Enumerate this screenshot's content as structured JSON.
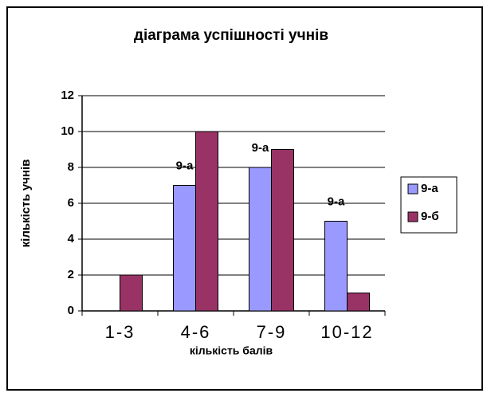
{
  "chart_data": {
    "type": "bar",
    "title": "діаграма успішності учнів",
    "x_label": "кількість балів",
    "y_label": "кількість учнів",
    "categories": [
      "1-3",
      "4-6",
      "7-9",
      "10-12"
    ],
    "series": [
      {
        "name": "9-а",
        "color": "#9999ff",
        "values": [
          0,
          7,
          8,
          5
        ],
        "labels": [
          null,
          "9-а",
          "9-а",
          "9-а"
        ]
      },
      {
        "name": "9-б",
        "color": "#993366",
        "values": [
          2,
          10,
          9,
          1
        ]
      }
    ],
    "ylim": [
      0,
      12
    ],
    "yticks": [
      0,
      2,
      4,
      6,
      8,
      10,
      12
    ],
    "grid": true,
    "legend": "right"
  }
}
